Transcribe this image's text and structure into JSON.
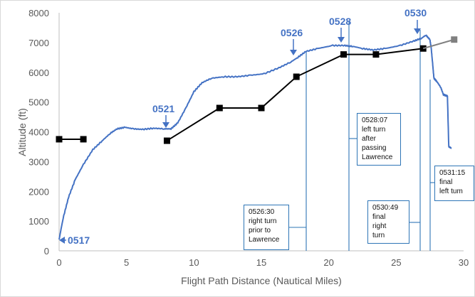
{
  "chart_data": {
    "type": "line",
    "title": "",
    "xlabel": "Flight Path Distance (Nautical Miles)",
    "ylabel": "Altitude (ft)",
    "xlim": [
      0,
      30
    ],
    "ylim": [
      0,
      8000
    ],
    "x_ticks": [
      "0",
      "5",
      "10",
      "15",
      "20",
      "25",
      "30"
    ],
    "y_ticks": [
      "0",
      "1000",
      "2000",
      "3000",
      "4000",
      "5000",
      "6000",
      "7000",
      "8000"
    ],
    "grid": false,
    "legend": "none",
    "series": [
      {
        "name": "Flight altitude track",
        "color": "#4472c4",
        "x": [
          0,
          0.3,
          0.7,
          1.2,
          1.8,
          2.5,
          3.2,
          3.8,
          4.3,
          4.9,
          5.5,
          6.2,
          7.0,
          7.8,
          8.3,
          8.8,
          9.4,
          10.0,
          10.6,
          11.3,
          12.2,
          13.2,
          14.2,
          15.2,
          16.3,
          17.2,
          17.7,
          18.3,
          19.2,
          20.3,
          21.2,
          21.8,
          22.5,
          23.3,
          24.2,
          25.3,
          26.3,
          26.9,
          27.2,
          27.5,
          27.6,
          27.7,
          27.8,
          28.0,
          28.3,
          28.5,
          28.8,
          28.9,
          29.1
        ],
        "y": [
          380,
          1100,
          1800,
          2400,
          2900,
          3400,
          3700,
          3950,
          4100,
          4150,
          4100,
          4080,
          4120,
          4100,
          4100,
          4300,
          4800,
          5350,
          5650,
          5800,
          5850,
          5850,
          5900,
          5950,
          6150,
          6350,
          6500,
          6700,
          6800,
          6900,
          6900,
          6870,
          6800,
          6750,
          6800,
          6900,
          7050,
          7150,
          7250,
          7100,
          6800,
          6300,
          5800,
          5700,
          5500,
          5250,
          5200,
          3500,
          3450
        ]
      },
      {
        "name": "Radar altitude (segment 1)",
        "color": "#000000",
        "marker": "square",
        "x": [
          0,
          1.8
        ],
        "y": [
          3750,
          3750
        ]
      },
      {
        "name": "Radar altitude (segment 2)",
        "color": "#000000",
        "marker": "square",
        "x": [
          8.0,
          11.9,
          15.0,
          17.6,
          21.1,
          23.5,
          27.0
        ],
        "y": [
          3700,
          4800,
          4800,
          5850,
          6600,
          6600,
          6800
        ]
      },
      {
        "name": "Radar altitude (last return)",
        "color": "#808080",
        "marker": "square",
        "x": [
          27.0,
          29.3
        ],
        "y": [
          6800,
          7100
        ]
      }
    ],
    "time_labels": [
      {
        "text": "0517",
        "x": 0.0,
        "y": 380,
        "arrow": "left"
      },
      {
        "text": "0521",
        "x": 8.0,
        "y": 4100,
        "arrow": "down"
      },
      {
        "text": "0526",
        "x": 17.5,
        "y": 6450,
        "arrow": "down"
      },
      {
        "text": "0528",
        "x": 20.9,
        "y": 6900,
        "arrow": "down"
      },
      {
        "text": "0530",
        "x": 27.0,
        "y": 7200,
        "arrow": "down"
      }
    ],
    "annotations": [
      {
        "time": "0526:30",
        "text": [
          "0526:30",
          "right turn",
          "prior to",
          "Lawrence"
        ],
        "x": 18.5
      },
      {
        "time": "0528:07",
        "text": [
          "0528:07",
          "left turn",
          "after",
          "passing",
          "Lawrence"
        ],
        "x": 21.3
      },
      {
        "time": "0530:49",
        "text": [
          "0530:49",
          "final",
          "right",
          "turn"
        ],
        "x": 26.8
      },
      {
        "time": "0531:15",
        "text": [
          "0531:15",
          "final",
          "left tum"
        ],
        "x": 27.4
      }
    ]
  },
  "labels": {
    "x_axis_title": "Flight Path Distance (Nautical Miles)",
    "y_axis_title": "Altitude (ft)",
    "t0517": "0517",
    "t0521": "0521",
    "t0526": "0526",
    "t0528": "0528",
    "t0530": "0530"
  },
  "notes": {
    "n1": {
      "l1": "0526:30",
      "l2": "right turn",
      "l3": "prior to",
      "l4": "Lawrence"
    },
    "n2": {
      "l1": "0528:07",
      "l2": "left turn",
      "l3": "after",
      "l4": "passing",
      "l5": "Lawrence"
    },
    "n3": {
      "l1": "0530:49",
      "l2": "final",
      "l3": "right",
      "l4": "turn"
    },
    "n4": {
      "l1": "0531:15",
      "l2": "final",
      "l3": "left tum"
    }
  },
  "colors": {
    "track": "#4472c4",
    "radar": "#000000",
    "radar_last": "#808080",
    "note_border": "#2e75b6",
    "axis": "#bfbfbf",
    "tick_text": "#595959"
  }
}
